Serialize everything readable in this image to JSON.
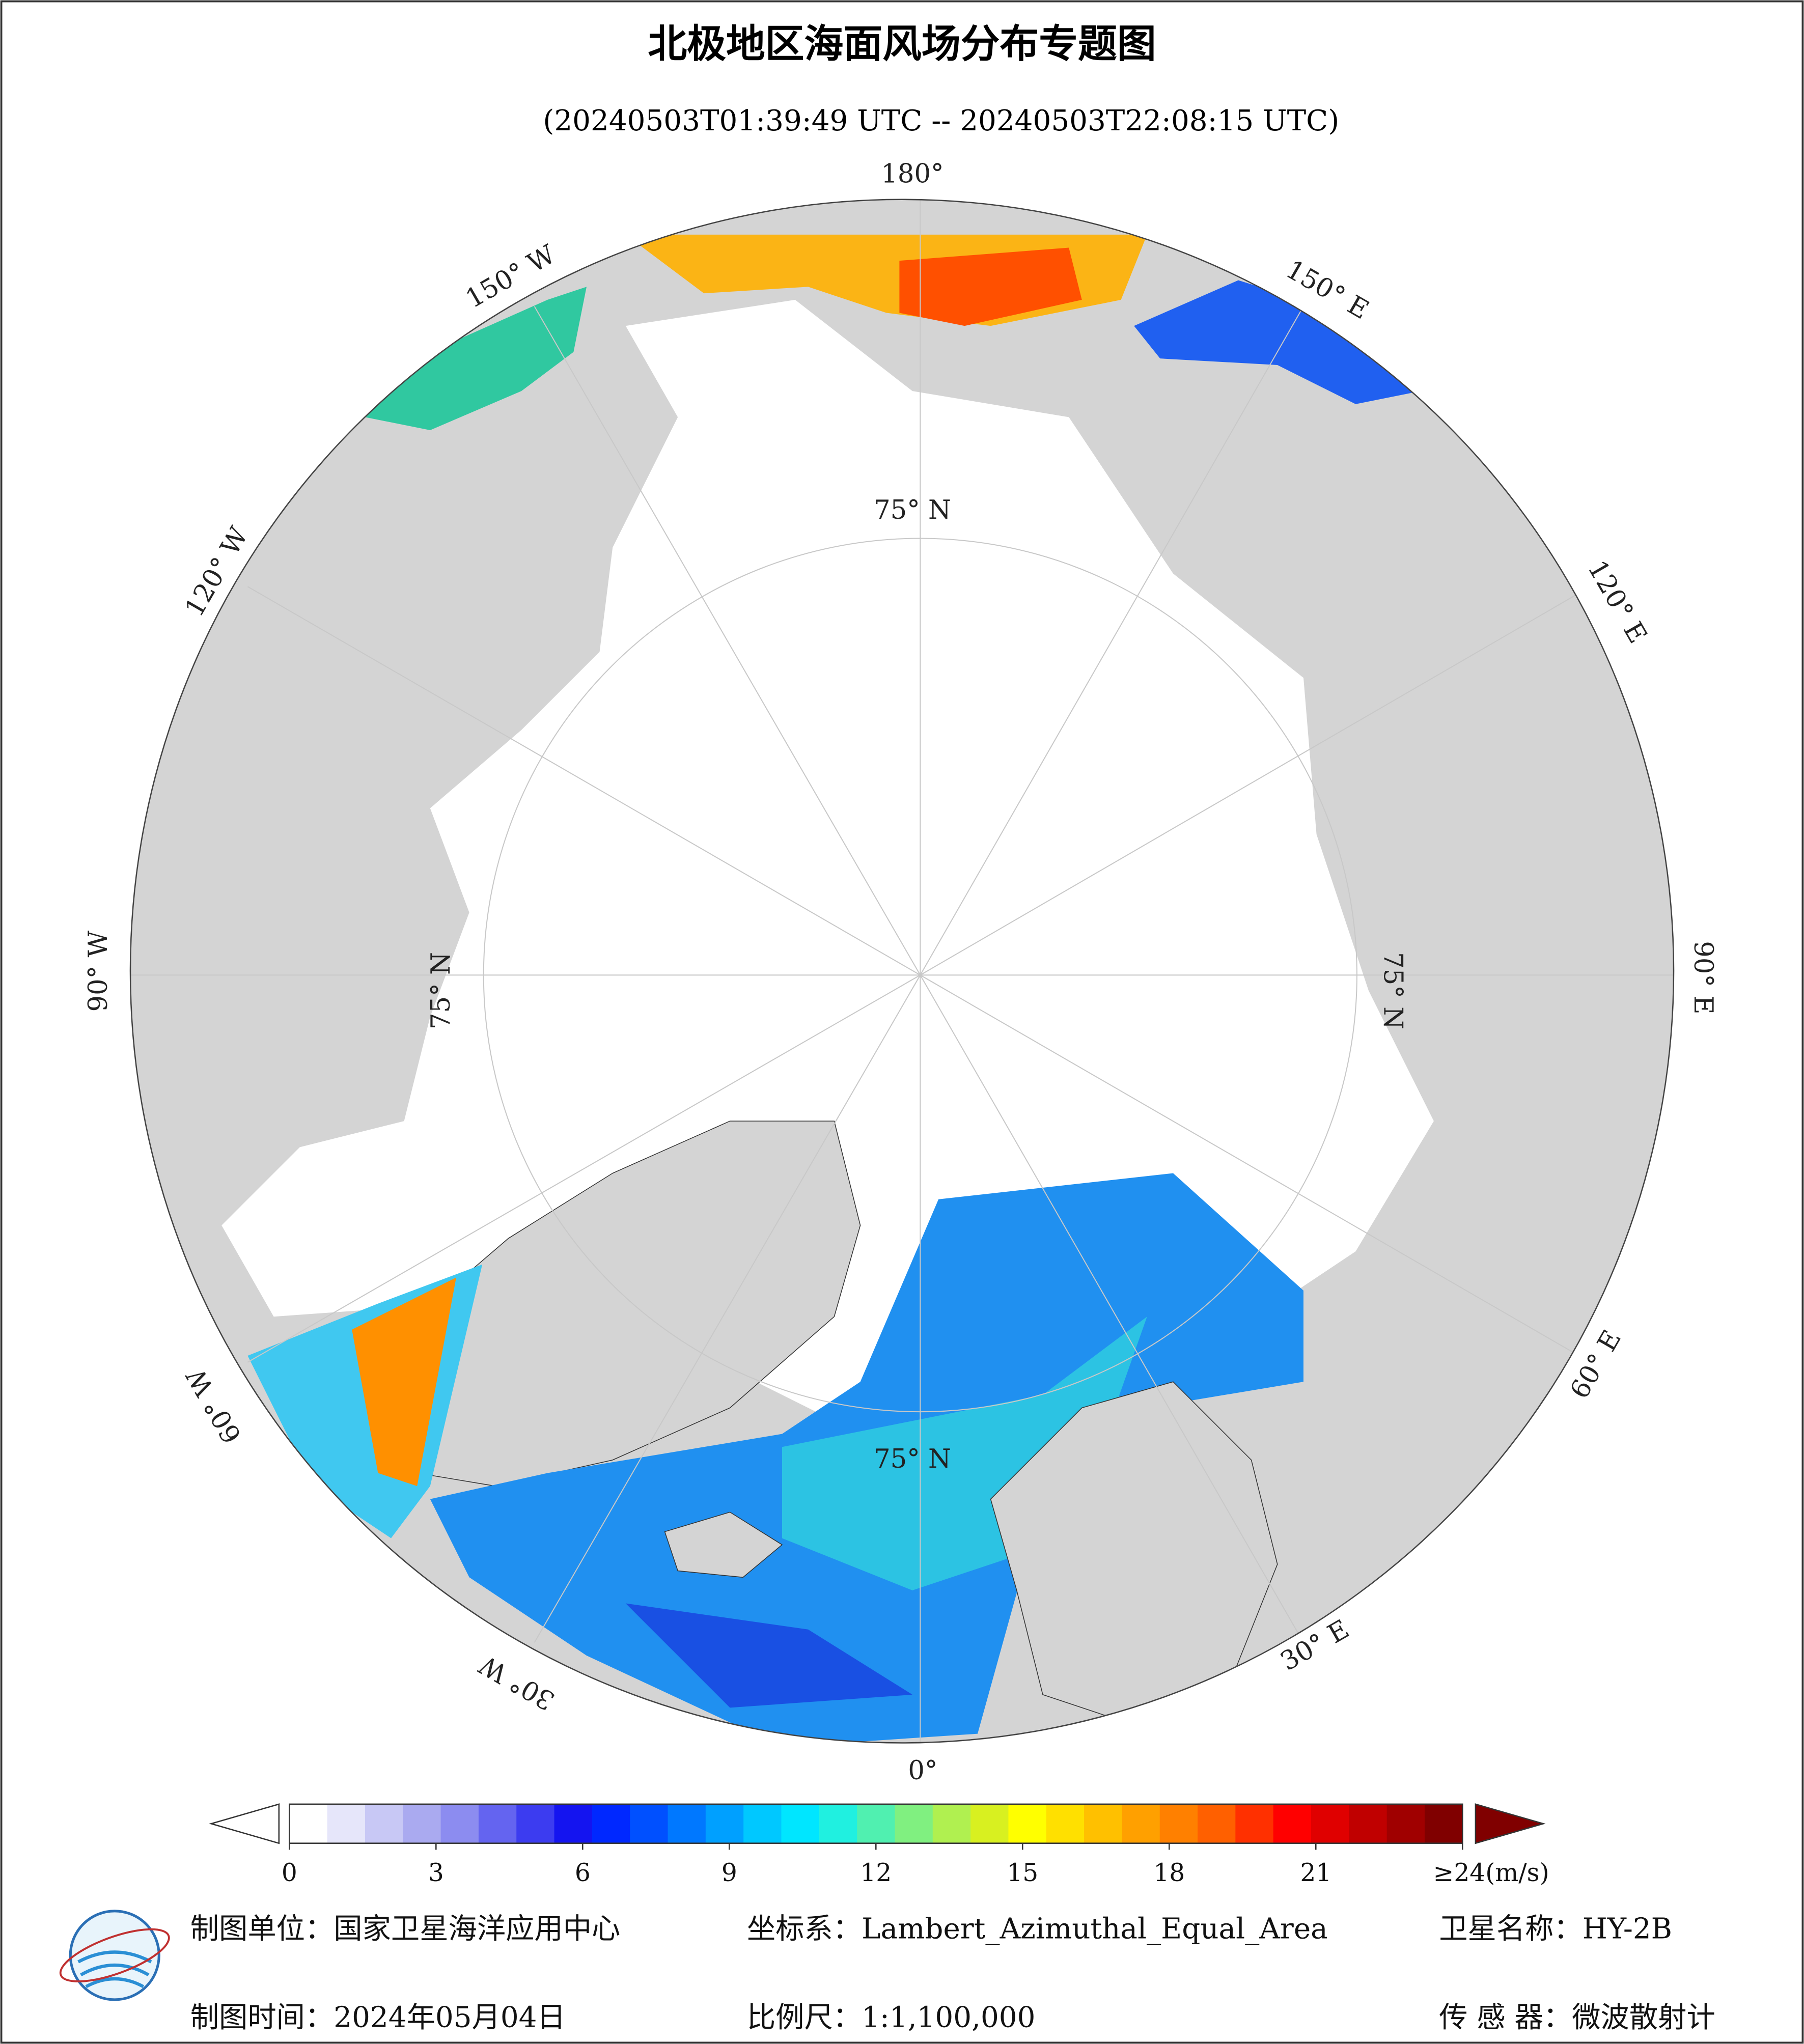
{
  "header": {
    "title": "北极地区海面风场分布专题图",
    "subtitle": "(20240503T01:39:49 UTC -- 20240503T22:08:15 UTC)"
  },
  "map": {
    "longitude_labels": [
      "180°",
      "150° W",
      "120° W",
      "90° W",
      "60° W",
      "30° W",
      "0°",
      "30° E",
      "60° E",
      "90° E",
      "120° E",
      "150° E"
    ],
    "latitude_labels": [
      "75° N",
      "75° N",
      "75° N",
      "75° N"
    ]
  },
  "colorbar": {
    "lim": [
      0,
      24
    ],
    "ticks": [
      0,
      3,
      6,
      9,
      12,
      15,
      18,
      21,
      {
        "value": 24,
        "label": "≥24(m/s)"
      }
    ],
    "colors": [
      "#ffffff",
      "#e6e6fa",
      "#c8c8f5",
      "#aaaaf0",
      "#8c8cf0",
      "#6464f0",
      "#3c3cf0",
      "#1414f0",
      "#0028ff",
      "#0050ff",
      "#0078ff",
      "#00a0ff",
      "#00c8ff",
      "#00e6ff",
      "#20f0e0",
      "#50f0b0",
      "#80f080",
      "#b0f050",
      "#d8f020",
      "#ffff00",
      "#ffe000",
      "#ffc000",
      "#ffa000",
      "#ff8000",
      "#ff6000",
      "#ff3000",
      "#ff0000",
      "#e00000",
      "#c00000",
      "#a00000",
      "#800000"
    ],
    "under_color": "#ffffff",
    "over_color": "#800000"
  },
  "footer": {
    "unit": "制图单位：国家卫星海洋应用中心",
    "crs": "坐标系：Lambert_Azimuthal_Equal_Area",
    "satellite": "卫星名称：HY-2B",
    "date": "制图时间：2024年05月04日",
    "scale": "比例尺：1:1,100,000",
    "sensor": "传 感 器：微波散射计"
  }
}
